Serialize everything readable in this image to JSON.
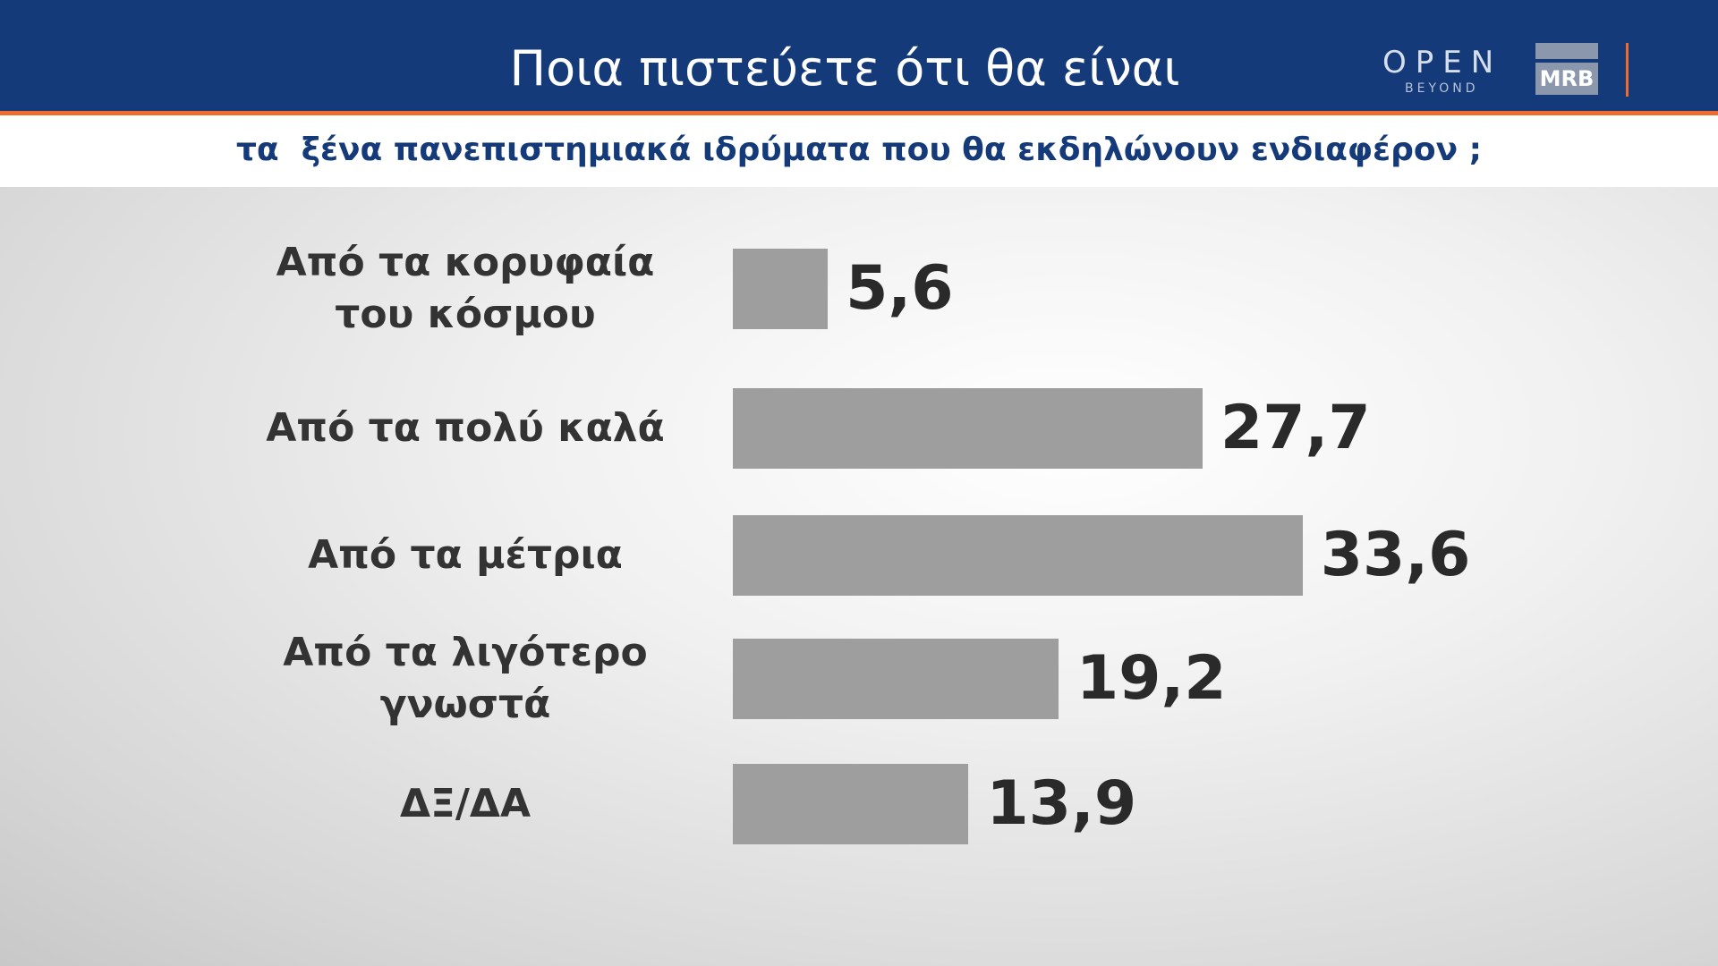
{
  "header": {
    "brand": "OPEN",
    "brand_tagline": "BEYOND",
    "pollster": "MRB"
  },
  "chart_data": {
    "type": "bar",
    "orientation": "horizontal",
    "title": "Ποια πιστεύετε ότι θα είναι",
    "subtitle": "τα  ξένα πανεπιστημιακά ιδρύματα που θα εκδηλώνουν ενδιαφέρον ;",
    "categories": [
      "Από τα κορυφαία του κόσμου",
      "Από τα πολύ καλά",
      "Από τα μέτρια",
      "Από τα λιγότερο γνωστά",
      "ΔΞ/ΔΑ"
    ],
    "values": [
      5.6,
      27.7,
      33.6,
      19.2,
      13.9
    ],
    "value_labels": [
      "5,6",
      "27,7",
      "33,6",
      "19,2",
      "13,9"
    ],
    "color": "#9e9e9e"
  }
}
